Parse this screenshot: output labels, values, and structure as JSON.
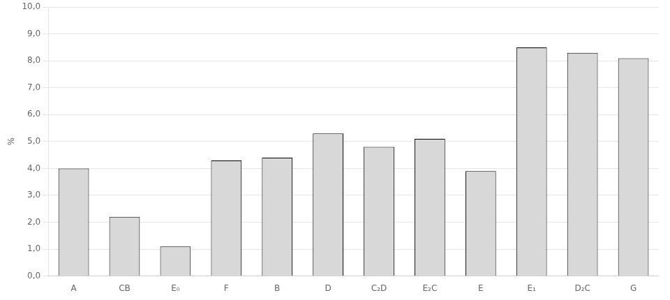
{
  "chart_data": {
    "type": "bar",
    "categories": [
      "A",
      "CB",
      "E₀",
      "F",
      "B",
      "D",
      "C₂D",
      "E₂C",
      "E",
      "E₁",
      "D₂C",
      "G"
    ],
    "values": [
      4.0,
      2.2,
      1.1,
      4.3,
      4.4,
      5.3,
      4.8,
      5.1,
      3.9,
      8.5,
      8.3,
      8.1
    ],
    "color": "#d8d8d8",
    "ylabel": "%",
    "ylim": [
      0.0,
      10.0
    ],
    "yticks": [
      {
        "value": 0,
        "label": "0,0"
      },
      {
        "value": 1,
        "label": "1,0"
      },
      {
        "value": 2,
        "label": "2,0"
      },
      {
        "value": 3,
        "label": "3,0"
      },
      {
        "value": 4,
        "label": "4,0"
      },
      {
        "value": 5,
        "label": "5,0"
      },
      {
        "value": 6,
        "label": "6,0"
      },
      {
        "value": 7,
        "label": "7,0"
      },
      {
        "value": 8,
        "label": "8,0"
      },
      {
        "value": 9,
        "label": "9,0"
      },
      {
        "value": 10,
        "label": "10,0"
      }
    ],
    "grid": "y"
  }
}
